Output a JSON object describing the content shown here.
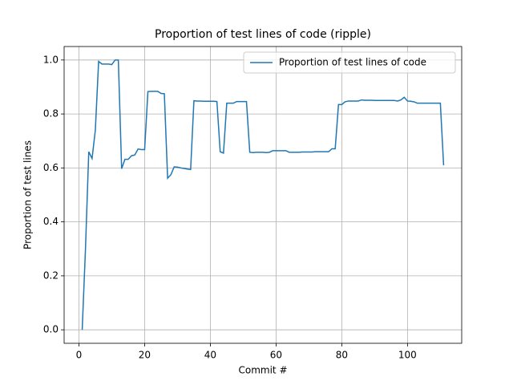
{
  "chart_data": {
    "type": "line",
    "title": "Proportion of test lines of code (ripple)",
    "x_label": "Commit #",
    "y_label": "Proportion of test lines",
    "x": [
      1,
      2,
      3,
      4,
      5,
      6,
      7,
      8,
      9,
      10,
      11,
      12,
      13,
      14,
      15,
      16,
      17,
      18,
      19,
      20,
      21,
      22,
      23,
      24,
      25,
      26,
      27,
      28,
      29,
      30,
      31,
      32,
      33,
      34,
      35,
      36,
      37,
      38,
      39,
      40,
      41,
      42,
      43,
      44,
      45,
      46,
      47,
      48,
      49,
      50,
      51,
      52,
      53,
      54,
      55,
      56,
      57,
      58,
      59,
      60,
      61,
      62,
      63,
      64,
      65,
      66,
      67,
      68,
      69,
      70,
      71,
      72,
      73,
      74,
      75,
      76,
      77,
      78,
      79,
      80,
      81,
      82,
      83,
      84,
      85,
      86,
      87,
      88,
      89,
      90,
      91,
      92,
      93,
      94,
      95,
      96,
      97,
      98,
      99,
      100,
      101,
      102,
      103,
      104,
      105,
      106,
      107,
      108,
      109,
      110,
      111
    ],
    "series": [
      {
        "name": "Proportion of test lines of code",
        "color": "#1f77b4",
        "values": [
          0,
          0.3,
          0.66,
          0.635,
          0.74,
          0.995,
          0.985,
          0.985,
          0.985,
          0.983,
          1.0,
          1.0,
          0.597,
          0.632,
          0.632,
          0.645,
          0.648,
          0.67,
          0.668,
          0.668,
          0.883,
          0.884,
          0.884,
          0.884,
          0.876,
          0.875,
          0.562,
          0.575,
          0.604,
          0.603,
          0.6,
          0.598,
          0.596,
          0.594,
          0.849,
          0.848,
          0.848,
          0.847,
          0.847,
          0.847,
          0.847,
          0.846,
          0.66,
          0.655,
          0.84,
          0.84,
          0.84,
          0.846,
          0.846,
          0.846,
          0.846,
          0.658,
          0.657,
          0.658,
          0.658,
          0.658,
          0.657,
          0.658,
          0.664,
          0.664,
          0.664,
          0.664,
          0.664,
          0.658,
          0.658,
          0.658,
          0.658,
          0.659,
          0.659,
          0.659,
          0.659,
          0.66,
          0.66,
          0.66,
          0.66,
          0.66,
          0.671,
          0.671,
          0.835,
          0.835,
          0.845,
          0.848,
          0.848,
          0.848,
          0.848,
          0.852,
          0.851,
          0.851,
          0.851,
          0.85,
          0.85,
          0.85,
          0.85,
          0.85,
          0.85,
          0.85,
          0.848,
          0.852,
          0.862,
          0.848,
          0.847,
          0.845,
          0.84,
          0.84,
          0.84,
          0.84,
          0.84,
          0.84,
          0.84,
          0.84,
          0.61
        ]
      }
    ],
    "xlim": [
      -4.5,
      116.5
    ],
    "xticks": [
      0,
      20,
      40,
      60,
      80,
      100
    ],
    "ylim": [
      -0.05,
      1.05
    ],
    "yticks": [
      {
        "value": 0,
        "label": "0.0"
      },
      0.2,
      0.4,
      0.6,
      0.8,
      {
        "value": 1,
        "label": "1.0"
      }
    ],
    "grid": true,
    "legend": "upper right"
  }
}
